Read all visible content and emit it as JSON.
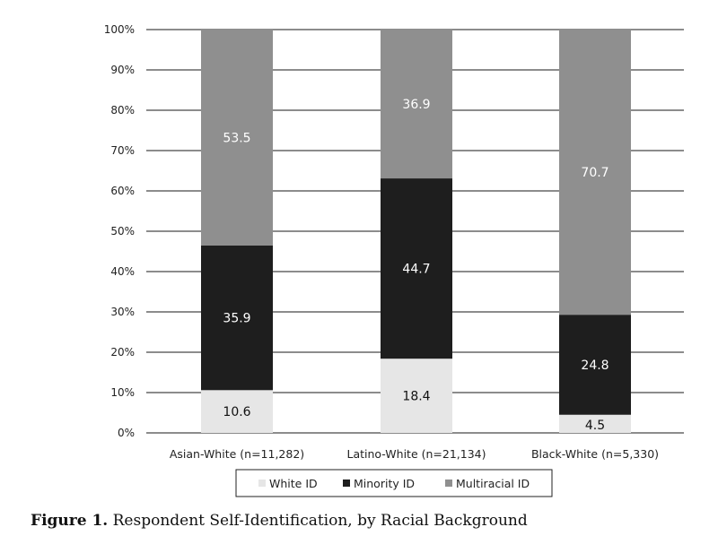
{
  "chart_data": {
    "type": "bar",
    "stacked": true,
    "categories": [
      "Asian-White (n=11,282)",
      "Latino-White (n=21,134)",
      "Black-White (n=5,330)"
    ],
    "series": [
      {
        "name": "White ID",
        "values": [
          10.6,
          18.4,
          4.5
        ],
        "color": "#e6e6e6",
        "label_color": "#111111"
      },
      {
        "name": "Minority ID",
        "values": [
          35.9,
          44.7,
          24.8
        ],
        "color": "#1e1e1e",
        "label_color": "#ffffff"
      },
      {
        "name": "Multiracial ID",
        "values": [
          53.5,
          36.9,
          70.7
        ],
        "color": "#8f8f8f",
        "label_color": "#ffffff"
      }
    ],
    "yticks": [
      "0%",
      "10%",
      "20%",
      "30%",
      "40%",
      "50%",
      "60%",
      "70%",
      "80%",
      "90%",
      "100%"
    ],
    "ylim": [
      0,
      100
    ],
    "grid": true,
    "legend_position": "bottom"
  },
  "caption": {
    "label": "Figure 1.",
    "text": "Respondent Self-Identification, by Racial Background"
  }
}
